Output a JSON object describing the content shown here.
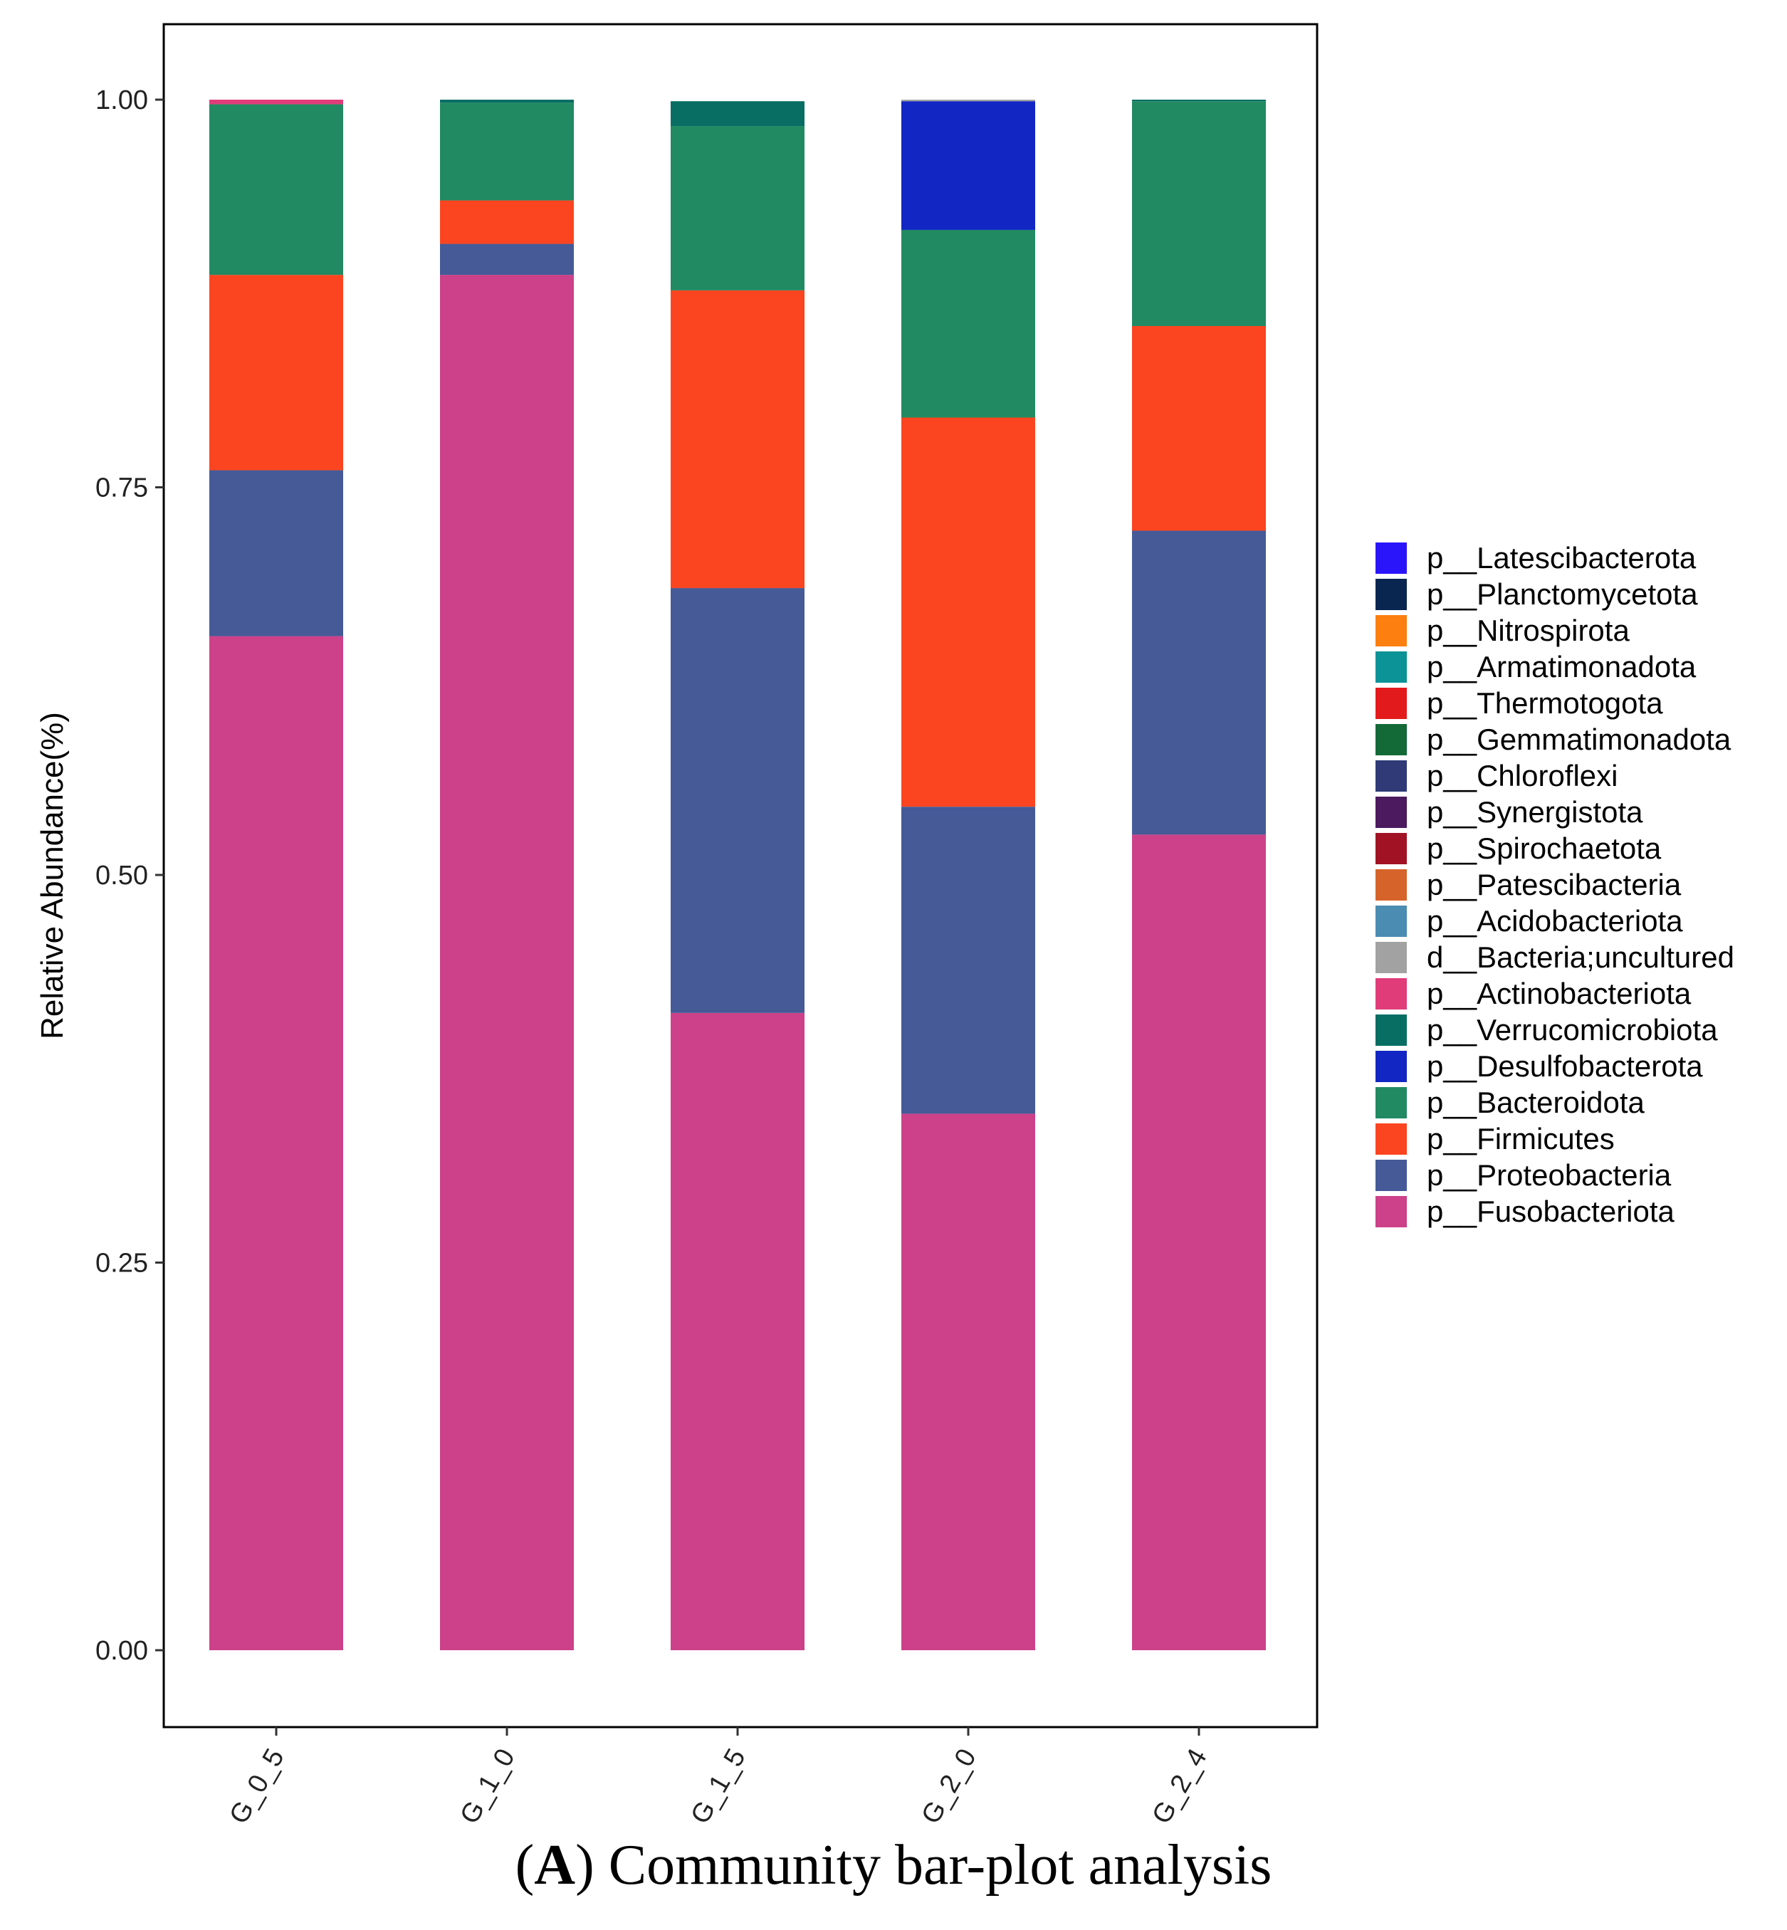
{
  "chart_data": {
    "type": "bar",
    "stacked": true,
    "ylabel": "Relative Abundance(%)",
    "xlabel": "",
    "ylim": [
      -0.05,
      1.05
    ],
    "yticks": [
      "0.00",
      "0.25",
      "0.50",
      "0.75",
      "1.00"
    ],
    "categories": [
      "G_0_5",
      "G_1_0",
      "G_1_5",
      "G_2_0",
      "G_2_4"
    ],
    "series": [
      {
        "name": "p__Fusobacteriota",
        "color": "#CC4189",
        "values": [
          0.654,
          0.887,
          0.411,
          0.346,
          0.526
        ]
      },
      {
        "name": "p__Proteobacteria",
        "color": "#455A97",
        "values": [
          0.107,
          0.02,
          0.274,
          0.198,
          0.196
        ]
      },
      {
        "name": "p__Firmicutes",
        "color": "#FB4520",
        "values": [
          0.126,
          0.028,
          0.192,
          0.251,
          0.132
        ]
      },
      {
        "name": "p__Bacteroidota",
        "color": "#218A62",
        "values": [
          0.11,
          0.063,
          0.106,
          0.121,
          0.145
        ]
      },
      {
        "name": "p__Desulfobacterota",
        "color": "#1126C3",
        "values": [
          0.0,
          0.0,
          0.0,
          0.083,
          0.0
        ]
      },
      {
        "name": "p__Verrucomicrobiota",
        "color": "#086E64",
        "values": [
          0.0,
          0.002,
          0.016,
          0.0,
          0.001
        ]
      },
      {
        "name": "p__Actinobacteriota",
        "color": "#E03C7A",
        "values": [
          0.003,
          0.0,
          0.0,
          0.0,
          0.0
        ]
      },
      {
        "name": "d__Bacteria;uncultured",
        "color": "#A2A2A2",
        "values": [
          0.0,
          0.0,
          0.0,
          0.001,
          0.0
        ]
      },
      {
        "name": "p__Acidobacteriota",
        "color": "#4B8CB2",
        "values": [
          0.0,
          0.0,
          0.0,
          0.0,
          0.0
        ]
      },
      {
        "name": "p__Patescibacteria",
        "color": "#D6642A",
        "values": [
          0.0,
          0.0,
          0.0,
          0.0,
          0.0
        ]
      },
      {
        "name": "p__Spirochaetota",
        "color": "#A11324",
        "values": [
          0.0,
          0.0,
          0.0,
          0.0,
          0.0
        ]
      },
      {
        "name": "p__Synergistota",
        "color": "#4C1A5E",
        "values": [
          0.0,
          0.0,
          0.0,
          0.0,
          0.0
        ]
      },
      {
        "name": "p__Chloroflexi",
        "color": "#2F3A77",
        "values": [
          0.0,
          0.0,
          0.0,
          0.0,
          0.0
        ]
      },
      {
        "name": "p__Gemmatimonadota",
        "color": "#136A37",
        "values": [
          0.0,
          0.0,
          0.0,
          0.0,
          0.0
        ]
      },
      {
        "name": "p__Thermotogota",
        "color": "#E31A1C",
        "values": [
          0.0,
          0.0,
          0.0,
          0.0,
          0.0
        ]
      },
      {
        "name": "p__Armatimonadota",
        "color": "#0C9398",
        "values": [
          0.0,
          0.0,
          0.0,
          0.0,
          0.0
        ]
      },
      {
        "name": "p__Nitrospirota",
        "color": "#FD7F0F",
        "values": [
          0.0,
          0.0,
          0.0,
          0.0,
          0.0
        ]
      },
      {
        "name": "p__Planctomycetota",
        "color": "#082650",
        "values": [
          0.0,
          0.0,
          0.0,
          0.0,
          0.0
        ]
      },
      {
        "name": "p__Latescibacterota",
        "color": "#2A15FA",
        "values": [
          0.0,
          0.0,
          0.0,
          0.0,
          0.0
        ]
      }
    ],
    "legend_order": [
      "p__Latescibacterota",
      "p__Planctomycetota",
      "p__Nitrospirota",
      "p__Armatimonadota",
      "p__Thermotogota",
      "p__Gemmatimonadota",
      "p__Chloroflexi",
      "p__Synergistota",
      "p__Spirochaetota",
      "p__Patescibacteria",
      "p__Acidobacteriota",
      "d__Bacteria;uncultured",
      "p__Actinobacteriota",
      "p__Verrucomicrobiota",
      "p__Desulfobacterota",
      "p__Bacteroidota",
      "p__Firmicutes",
      "p__Proteobacteria",
      "p__Fusobacteriota"
    ],
    "legend_position": "right"
  },
  "caption": {
    "label": "A",
    "text": " Community bar-plot analysis"
  }
}
